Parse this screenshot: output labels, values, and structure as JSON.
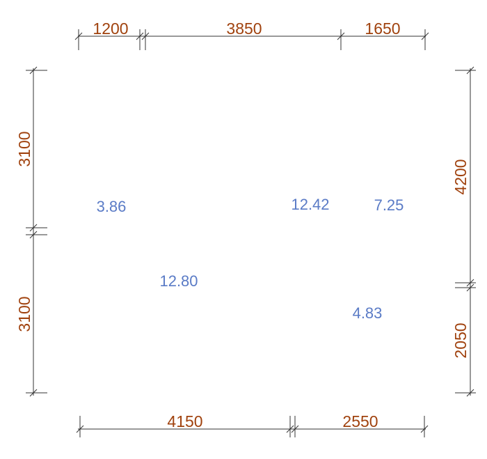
{
  "colors": {
    "dimension_text": "#a0420e",
    "area_text": "#5a7bc6",
    "line": "#333333"
  },
  "dimensions": {
    "top": [
      "1200",
      "3850",
      "1650"
    ],
    "bottom": [
      "4150",
      "2550"
    ],
    "left": [
      "3100",
      "3100"
    ],
    "right": [
      "4200",
      "2050"
    ]
  },
  "areas": [
    "3.86",
    "12.42",
    "7.25",
    "12.80",
    "4.83"
  ]
}
